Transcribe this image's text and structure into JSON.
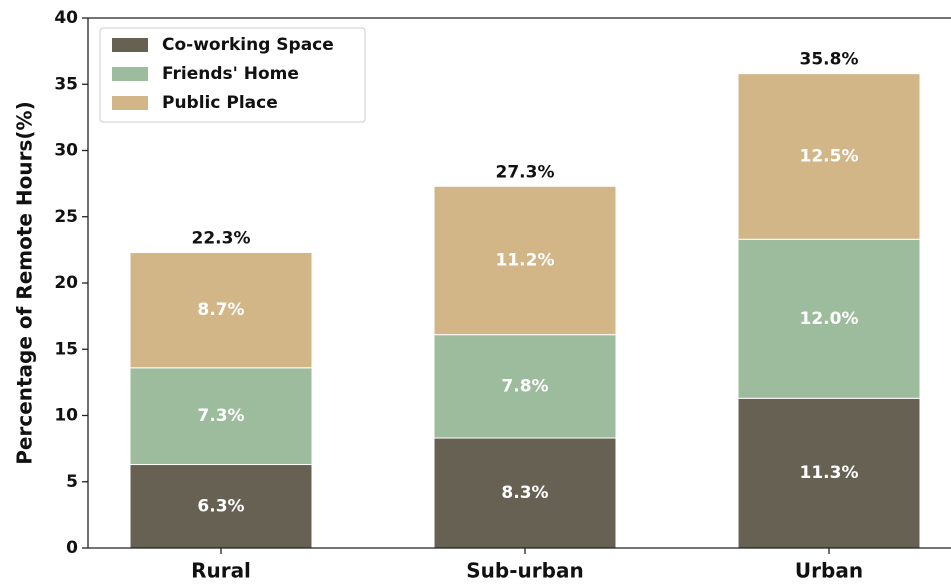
{
  "chart_data": {
    "type": "stacked_bar",
    "ylabel": "Percentage of Remote Hours(%)",
    "categories": [
      "Rural",
      "Sub-urban",
      "Urban"
    ],
    "series": [
      {
        "name": "Co-working Space",
        "color": "#666152",
        "values": [
          6.3,
          8.3,
          11.3
        ],
        "value_labels": [
          "6.3%",
          "8.3%",
          "11.3%"
        ]
      },
      {
        "name": "Friends' Home",
        "color": "#9dbb9d",
        "values": [
          7.3,
          7.8,
          12.0
        ],
        "value_labels": [
          "7.3%",
          "7.8%",
          "12.0%"
        ]
      },
      {
        "name": "Public Place",
        "color": "#d3b688",
        "values": [
          8.7,
          11.2,
          12.5
        ],
        "value_labels": [
          "8.7%",
          "11.2%",
          "12.5%"
        ]
      }
    ],
    "totals": [
      22.3,
      27.3,
      35.8
    ],
    "total_labels": [
      "22.3%",
      "27.3%",
      "35.8%"
    ],
    "ylim": [
      0,
      40
    ],
    "yticks": [
      0,
      5,
      10,
      15,
      20,
      25,
      30,
      35,
      40
    ],
    "legend": "upper left"
  }
}
